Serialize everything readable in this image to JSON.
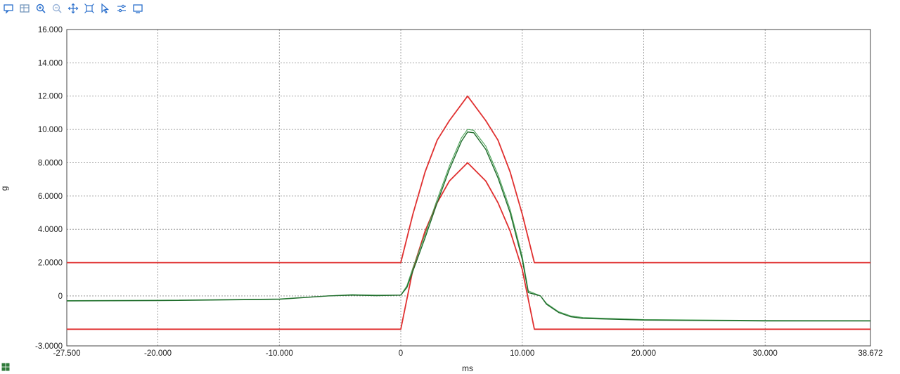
{
  "toolbar": {
    "icons": [
      "comment-icon",
      "table-icon",
      "zoom-in-icon",
      "zoom-out-icon",
      "pan-icon",
      "fit-icon",
      "select-icon",
      "settings-icon",
      "screen-icon"
    ]
  },
  "colors": {
    "limit": "#e03030",
    "measured": "#1e6b2a",
    "measured_alt": "#3b9a48",
    "grid": "#8a8a8a"
  },
  "chart_data": {
    "type": "line",
    "title": "",
    "xlabel": "ms",
    "ylabel": "g",
    "xlim": [
      -27.5,
      38.672
    ],
    "ylim": [
      -3,
      16
    ],
    "grid": true,
    "x_ticks": [
      -27.5,
      -20,
      -10,
      0,
      10,
      20,
      30,
      38.672
    ],
    "x_tick_labels": [
      "-27.500",
      "-20.000",
      "-10.000",
      "0",
      "10.000",
      "20.000",
      "30.000",
      "38.672"
    ],
    "y_ticks": [
      -3,
      0,
      2,
      4,
      6,
      8,
      10,
      12,
      14,
      16
    ],
    "y_tick_labels": [
      "-3.0000",
      "0",
      "2.0000",
      "4.0000",
      "6.0000",
      "8.0000",
      "10.000",
      "12.000",
      "14.000",
      "16.000"
    ],
    "series": [
      {
        "role": "upper-limit",
        "points": [
          [
            -27.5,
            2
          ],
          [
            0,
            2
          ],
          [
            1,
            4.92
          ],
          [
            2,
            7.45
          ],
          [
            3,
            9.36
          ],
          [
            4,
            10.53
          ],
          [
            5.5,
            12
          ],
          [
            7,
            10.53
          ],
          [
            8,
            9.36
          ],
          [
            9,
            7.45
          ],
          [
            10,
            4.92
          ],
          [
            11,
            2
          ],
          [
            38.672,
            2
          ]
        ]
      },
      {
        "role": "lower-limit",
        "points": [
          [
            -27.5,
            -2
          ],
          [
            0,
            -2
          ],
          [
            1,
            1.6
          ],
          [
            2,
            3.9
          ],
          [
            3,
            5.6
          ],
          [
            4,
            6.9
          ],
          [
            5.5,
            8
          ],
          [
            7,
            6.9
          ],
          [
            8,
            5.6
          ],
          [
            9,
            3.9
          ],
          [
            10,
            1.6
          ],
          [
            11,
            -2
          ],
          [
            38.672,
            -2
          ]
        ]
      },
      {
        "role": "measured",
        "points": [
          [
            -27.5,
            -0.3
          ],
          [
            -20,
            -0.28
          ],
          [
            -10,
            -0.2
          ],
          [
            -6,
            0
          ],
          [
            -4,
            0.05
          ],
          [
            -2,
            0.02
          ],
          [
            0,
            0.05
          ],
          [
            0.5,
            0.5
          ],
          [
            1,
            1.5
          ],
          [
            2,
            3.5
          ],
          [
            3,
            5.6
          ],
          [
            4,
            7.6
          ],
          [
            5,
            9.3
          ],
          [
            5.5,
            9.85
          ],
          [
            6,
            9.8
          ],
          [
            7,
            8.8
          ],
          [
            8,
            7.1
          ],
          [
            9,
            5
          ],
          [
            10,
            2.2
          ],
          [
            10.5,
            0.2
          ],
          [
            11.5,
            0
          ],
          [
            12,
            -0.5
          ],
          [
            13,
            -1
          ],
          [
            14,
            -1.25
          ],
          [
            15,
            -1.35
          ],
          [
            20,
            -1.45
          ],
          [
            30,
            -1.5
          ],
          [
            38.672,
            -1.5
          ]
        ]
      },
      {
        "role": "measured-reference",
        "points": [
          [
            -27.5,
            -0.28
          ],
          [
            -20,
            -0.26
          ],
          [
            -10,
            -0.18
          ],
          [
            -6,
            0
          ],
          [
            -4,
            0.08
          ],
          [
            -2,
            0.05
          ],
          [
            0,
            0.05
          ],
          [
            0.5,
            0.6
          ],
          [
            1,
            1.7
          ],
          [
            2,
            3.7
          ],
          [
            3,
            5.8
          ],
          [
            4,
            7.8
          ],
          [
            5,
            9.5
          ],
          [
            5.5,
            10
          ],
          [
            6,
            9.95
          ],
          [
            7,
            9
          ],
          [
            8,
            7.3
          ],
          [
            9,
            5.2
          ],
          [
            10,
            2.4
          ],
          [
            10.5,
            0.3
          ],
          [
            11.5,
            0
          ],
          [
            12,
            -0.45
          ],
          [
            13,
            -0.95
          ],
          [
            14,
            -1.2
          ],
          [
            15,
            -1.3
          ],
          [
            20,
            -1.42
          ],
          [
            30,
            -1.47
          ],
          [
            38.672,
            -1.48
          ]
        ]
      }
    ]
  }
}
